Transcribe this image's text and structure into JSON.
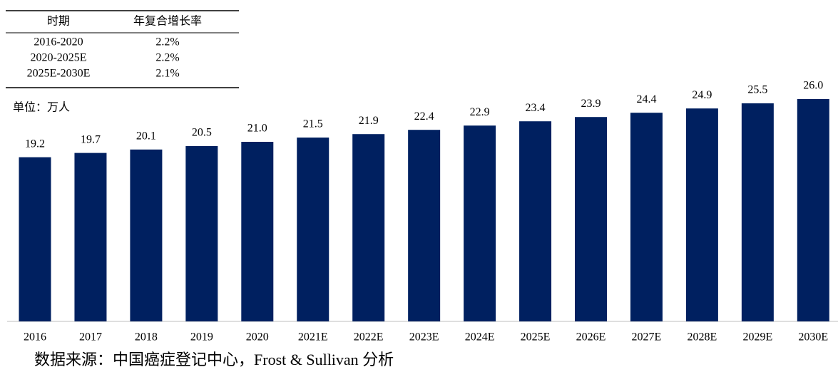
{
  "chart_data": {
    "type": "bar",
    "unit_label": "单位：万人",
    "source": "数据来源：中国癌症登记中心，Frost & Sullivan 分析",
    "categories": [
      "2016",
      "2017",
      "2018",
      "2019",
      "2020",
      "2021E",
      "2022E",
      "2023E",
      "2024E",
      "2025E",
      "2026E",
      "2027E",
      "2028E",
      "2029E",
      "2030E"
    ],
    "values": [
      19.2,
      19.7,
      20.1,
      20.5,
      21.0,
      21.5,
      21.9,
      22.4,
      22.9,
      23.4,
      23.9,
      24.4,
      24.9,
      25.5,
      26.0
    ],
    "value_labels": [
      "19.2",
      "19.7",
      "20.1",
      "20.5",
      "21.0",
      "21.5",
      "21.9",
      "22.4",
      "22.9",
      "23.4",
      "23.9",
      "24.4",
      "24.9",
      "25.5",
      "26.0"
    ],
    "color": "#002060"
  },
  "table": {
    "header": [
      "时期",
      "年复合增长率"
    ],
    "rows": [
      [
        "2016-2020",
        "2.2%"
      ],
      [
        "2020-2025E",
        "2.2%"
      ],
      [
        "2025E-2030E",
        "2.1%"
      ]
    ]
  }
}
